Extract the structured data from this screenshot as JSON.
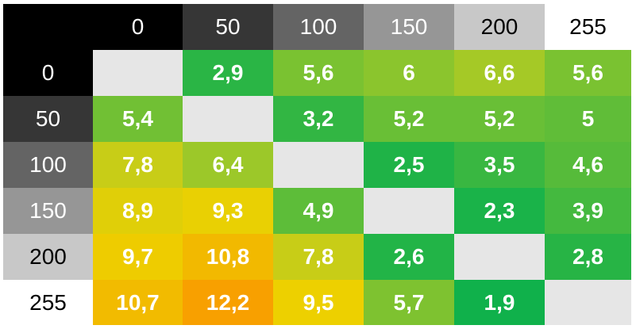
{
  "chart_data": {
    "type": "heatmap",
    "title": "",
    "xlabel": "",
    "ylabel": "",
    "columns": [
      "0",
      "50",
      "100",
      "150",
      "200",
      "255"
    ],
    "rows": [
      "0",
      "50",
      "100",
      "150",
      "200",
      "255"
    ],
    "cell_labels": [
      [
        "",
        "2,9",
        "5,6",
        "6",
        "6,6",
        "5,6"
      ],
      [
        "5,4",
        "",
        "3,2",
        "5,2",
        "5,2",
        "5"
      ],
      [
        "7,8",
        "6,4",
        "",
        "2,5",
        "3,5",
        "4,6"
      ],
      [
        "8,9",
        "9,3",
        "4,9",
        "",
        "2,3",
        "3,9"
      ],
      [
        "9,7",
        "10,8",
        "7,8",
        "2,6",
        "",
        "2,8"
      ],
      [
        "10,7",
        "12,2",
        "9,5",
        "5,7",
        "1,9",
        ""
      ]
    ],
    "values": [
      [
        null,
        2.9,
        5.6,
        6,
        6.6,
        5.6
      ],
      [
        5.4,
        null,
        3.2,
        5.2,
        5.2,
        5
      ],
      [
        7.8,
        6.4,
        null,
        2.5,
        3.5,
        4.6
      ],
      [
        8.9,
        9.3,
        4.9,
        null,
        2.3,
        3.9
      ],
      [
        9.7,
        10.8,
        7.8,
        2.6,
        null,
        2.8
      ],
      [
        10.7,
        12.2,
        9.5,
        5.7,
        1.9,
        null
      ]
    ],
    "header_colors": [
      "#000000",
      "#363636",
      "#646464",
      "#969696",
      "#c8c8c8",
      "#ffffff"
    ],
    "diagonal_color": "#e6e6e6",
    "color_scale": [
      {
        "value": 1.9,
        "color": "#10b14b"
      },
      {
        "value": 5.0,
        "color": "#60bd38"
      },
      {
        "value": 7.0,
        "color": "#b6cc22"
      },
      {
        "value": 9.5,
        "color": "#edd000"
      },
      {
        "value": 12.2,
        "color": "#f8a000"
      }
    ]
  }
}
